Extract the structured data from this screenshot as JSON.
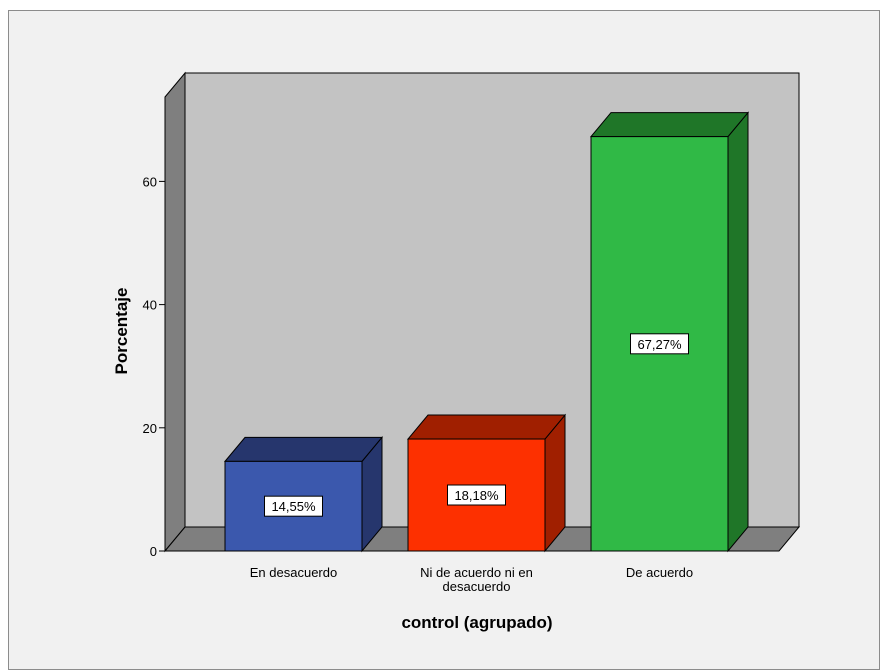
{
  "chart_data": {
    "type": "bar",
    "title": "",
    "xlabel": "control (agrupado)",
    "ylabel": "Porcentaje",
    "ylim": [
      0,
      75
    ],
    "yticks": [
      "0",
      "20",
      "40",
      "60"
    ],
    "grid": false,
    "categories": [
      [
        "En desacuerdo"
      ],
      [
        "Ni de acuerdo ni en",
        "desacuerdo"
      ],
      [
        "De acuerdo"
      ]
    ],
    "values": [
      14.55,
      18.18,
      67.27
    ],
    "data_labels": [
      "14,55%",
      "18,18%",
      "67,27%"
    ],
    "colors": {
      "bars": [
        "#3b58ad",
        "#fd3000",
        "#30b946"
      ],
      "bar_tops": [
        "#26366d",
        "#a01f00",
        "#1f7628"
      ],
      "back_wall": "#c3c3c3",
      "side_wall": "#7f7f7f",
      "floor": "#7f7f7f",
      "frame": "#f1f1f1"
    }
  }
}
